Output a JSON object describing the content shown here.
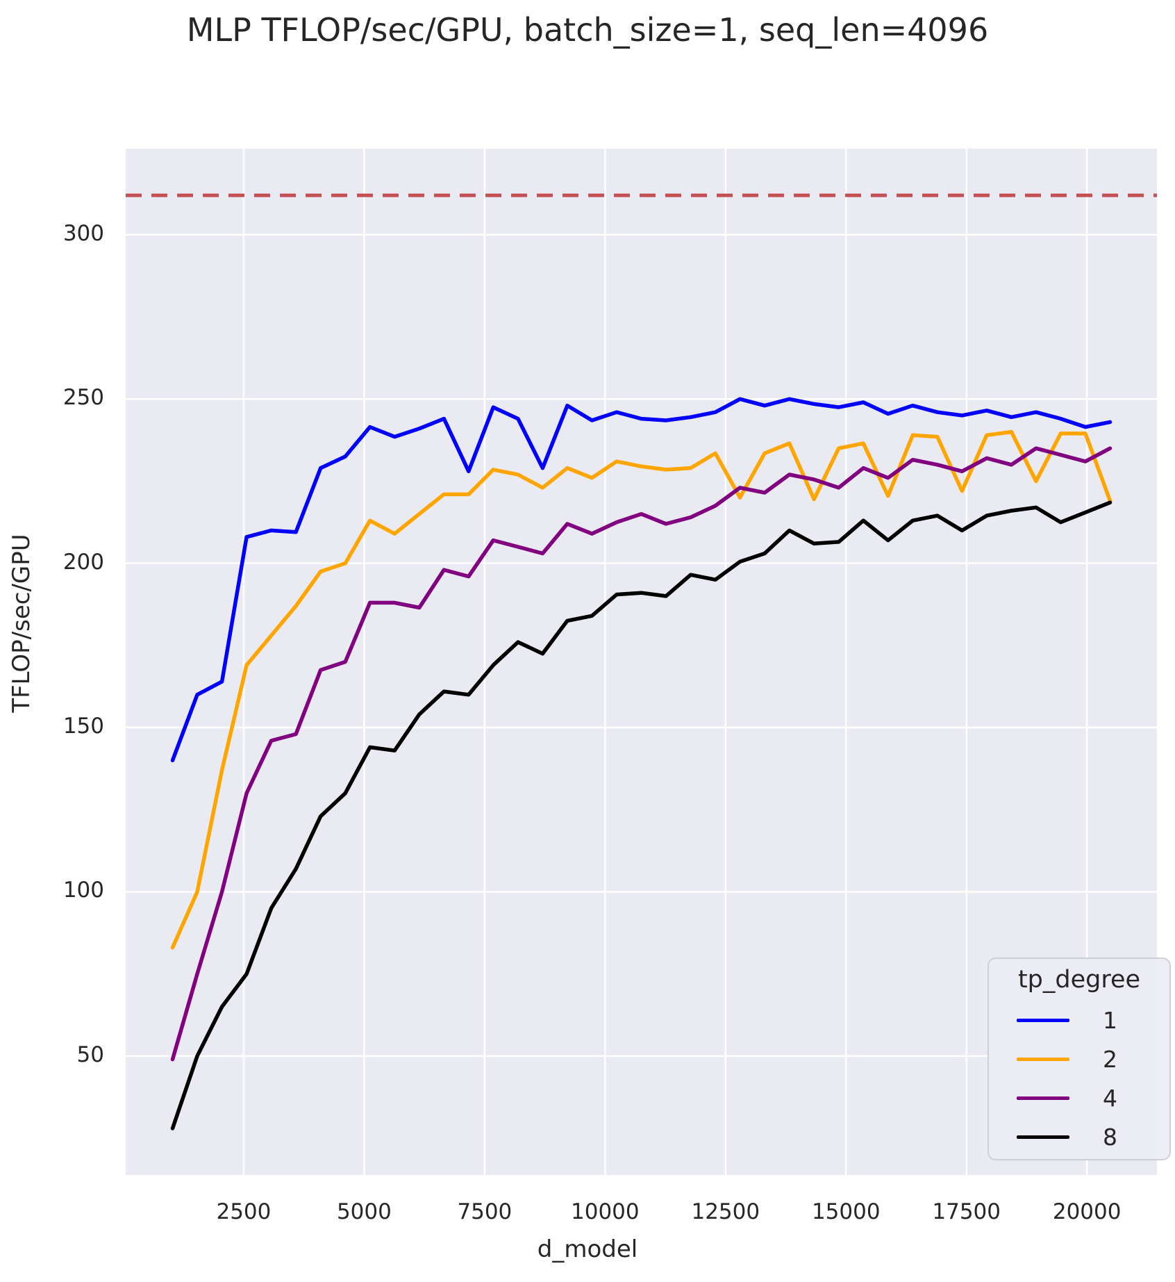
{
  "title": "MLP TFLOP/sec/GPU, batch_size=1, seq_len=4096",
  "axes": {
    "xlabel": "d_model",
    "ylabel": "TFLOP/sec/GPU"
  },
  "legend": {
    "title": "tp_degree",
    "entries": [
      {
        "label": "1",
        "color": "#0000FF"
      },
      {
        "label": "2",
        "color": "#FFA500"
      },
      {
        "label": "4",
        "color": "#800080"
      },
      {
        "label": "8",
        "color": "#000000"
      }
    ]
  },
  "colors": {
    "axes_background": "#EAEAF2",
    "grid": "#FFFFFF",
    "text": "#262626",
    "reference_line": "#C44E52"
  },
  "chart_data": {
    "type": "line",
    "title": "MLP TFLOP/sec/GPU, batch_size=1, seq_len=4096",
    "xlabel": "d_model",
    "ylabel": "TFLOP/sec/GPU",
    "xlim": [
      51,
      21453
    ],
    "ylim": [
      13.8,
      326.2
    ],
    "x_ticks": [
      2500,
      5000,
      7500,
      10000,
      12500,
      15000,
      17500,
      20000
    ],
    "y_ticks": [
      50,
      100,
      150,
      200,
      250,
      300
    ],
    "grid": true,
    "legend_title": "tp_degree",
    "legend_position": "lower right",
    "reference_line": {
      "value": 312,
      "color": "#C44E52",
      "style": "dashed"
    },
    "x": [
      1024,
      1536,
      2048,
      2560,
      3072,
      3584,
      4096,
      4608,
      5120,
      5632,
      6144,
      6656,
      7168,
      7680,
      8192,
      8704,
      9216,
      9728,
      10240,
      10752,
      11264,
      11776,
      12288,
      12800,
      13312,
      13824,
      14336,
      14848,
      15360,
      15872,
      16384,
      16896,
      17408,
      17920,
      18432,
      18944,
      19456,
      19968,
      20480
    ],
    "series": [
      {
        "name": "1",
        "color": "#0000FF",
        "values": [
          140,
          160,
          164,
          208,
          210,
          209.5,
          229,
          232.5,
          241.5,
          238.5,
          241,
          244,
          228,
          247.5,
          244,
          229,
          248,
          243.5,
          246,
          244,
          243.5,
          244.5,
          246,
          250,
          248,
          250,
          248.5,
          247.5,
          249,
          245.5,
          248,
          246,
          245,
          246.5,
          244.5,
          246,
          244,
          241.5,
          243
        ]
      },
      {
        "name": "2",
        "color": "#FFA500",
        "values": [
          83,
          100,
          137,
          169,
          178,
          187,
          197.5,
          200,
          213,
          209,
          215,
          221,
          221,
          228.5,
          227,
          223,
          229,
          226,
          231,
          229.5,
          228.5,
          229,
          233.5,
          220,
          233.5,
          236.5,
          219.5,
          235,
          236.5,
          220.5,
          239,
          238.5,
          222,
          239,
          240,
          225,
          239.5,
          239.5,
          219
        ]
      },
      {
        "name": "4",
        "color": "#800080",
        "values": [
          49,
          75,
          100,
          130,
          146,
          148,
          167.5,
          170,
          188,
          188,
          186.5,
          198,
          196,
          207,
          205,
          203,
          212,
          209,
          212.5,
          215,
          212,
          214,
          217.5,
          223,
          221.5,
          227,
          225.5,
          223,
          229,
          226,
          231.5,
          230,
          228,
          232,
          230,
          235,
          233,
          231,
          235
        ]
      },
      {
        "name": "8",
        "color": "#000000",
        "values": [
          28,
          50,
          65,
          75,
          95,
          107,
          123,
          130,
          144,
          143,
          154,
          161,
          160,
          169,
          176,
          172.5,
          182.5,
          184,
          190.5,
          191,
          190,
          196.5,
          195,
          200.5,
          203,
          210,
          206,
          206.5,
          213,
          207,
          213,
          214.5,
          210,
          214.5,
          216,
          217,
          212.5,
          215.5,
          218.5
        ]
      }
    ]
  }
}
